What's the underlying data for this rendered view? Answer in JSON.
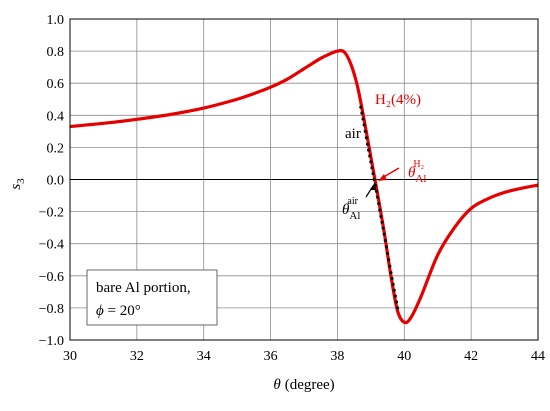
{
  "chart_data": {
    "type": "line",
    "xlabel_symbol": "θ",
    "xlabel_unit": "(degree)",
    "ylabel_symbol": "s",
    "ylabel_sub": "3",
    "xlim": [
      30,
      44
    ],
    "ylim": [
      -1.0,
      1.0
    ],
    "x_ticks": [
      "30",
      "32",
      "34",
      "36",
      "38",
      "40",
      "42",
      "44"
    ],
    "y_ticks": [
      "1.0",
      "0.8",
      "0.6",
      "0.4",
      "0.2",
      "0.0",
      "−0.2",
      "−0.4",
      "−0.6",
      "−0.8",
      "−1.0"
    ],
    "grid": true,
    "series": [
      {
        "name": "H₂(4%)",
        "color": "#e60000",
        "style": "solid",
        "x": [
          30,
          31,
          32,
          33,
          34,
          35,
          35.5,
          36,
          36.5,
          37,
          37.5,
          37.8,
          38.0,
          38.2,
          38.4,
          38.6,
          38.8,
          39.0,
          39.2,
          39.4,
          39.6,
          39.8,
          40.0,
          40.2,
          40.5,
          41.0,
          41.5,
          42.0,
          42.5,
          43.0,
          43.5,
          44.0
        ],
        "y": [
          0.33,
          0.35,
          0.375,
          0.405,
          0.445,
          0.5,
          0.535,
          0.575,
          0.625,
          0.69,
          0.755,
          0.785,
          0.8,
          0.795,
          0.72,
          0.58,
          0.37,
          0.14,
          -0.09,
          -0.33,
          -0.6,
          -0.82,
          -0.89,
          -0.86,
          -0.73,
          -0.47,
          -0.3,
          -0.18,
          -0.12,
          -0.08,
          -0.055,
          -0.035
        ]
      },
      {
        "name": "air",
        "color": "#111111",
        "style": "dotted",
        "x": [
          38.7,
          38.8,
          38.9,
          39.0,
          39.1,
          39.2,
          39.3,
          39.4,
          39.5,
          39.6,
          39.7,
          39.8
        ],
        "y": [
          0.45,
          0.34,
          0.22,
          0.11,
          0.0,
          -0.11,
          -0.23,
          -0.34,
          -0.46,
          -0.58,
          -0.69,
          -0.8
        ]
      }
    ],
    "annotations": {
      "h2_label": "H₂(4%)",
      "air_label": "air",
      "theta_symbol": "θ",
      "theta_sub": "Al",
      "theta_sup_h2": "H₂",
      "theta_sup_air": "air",
      "box_line1": "bare Al portion,",
      "box_line2_symbol": "ϕ",
      "box_line2_value": " = 20°"
    }
  }
}
